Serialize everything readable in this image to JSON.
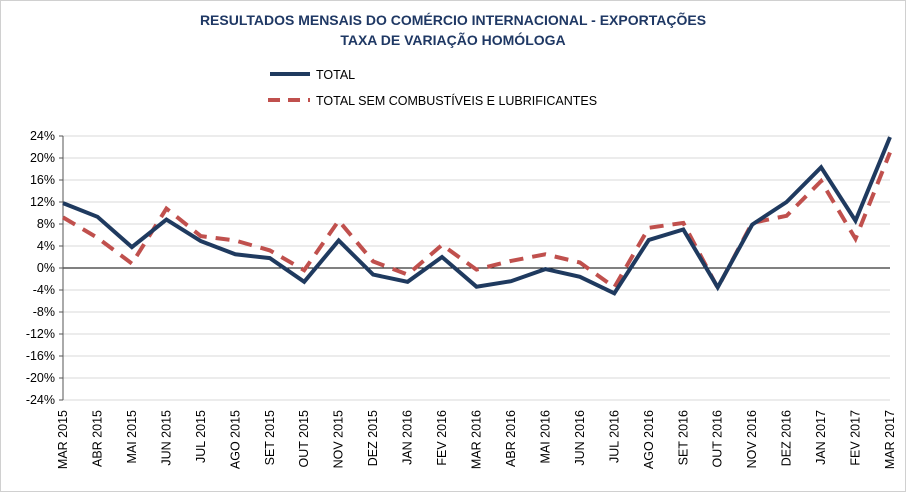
{
  "chart_data": {
    "type": "line",
    "title": "RESULTADOS MENSAIS DO COMÉRCIO INTERNACIONAL  - EXPORTAÇÕES",
    "subtitle": "TAXA DE VARIAÇÃO HOMÓLOGA",
    "xlabel": "",
    "ylabel": "",
    "ylim": [
      -24,
      24
    ],
    "yticks": [
      "24%",
      "20%",
      "16%",
      "12%",
      "8%",
      "4%",
      "0%",
      "-4%",
      "-8%",
      "-12%",
      "-16%",
      "-20%",
      "-24%"
    ],
    "ytick_values": [
      24,
      20,
      16,
      12,
      8,
      4,
      0,
      -4,
      -8,
      -12,
      -16,
      -20,
      -24
    ],
    "grid": true,
    "legend_position": "top",
    "categories": [
      "MAR 2015",
      "ABR 2015",
      "MAI 2015",
      "JUN 2015",
      "JUL 2015",
      "AGO 2015",
      "SET 2015",
      "OUT 2015",
      "NOV 2015",
      "DEZ 2015",
      "JAN 2016",
      "FEV 2016",
      "MAR 2016",
      "ABR 2016",
      "MAI 2016",
      "JUN 2016",
      "JUL 2016",
      "AGO 2016",
      "SET 2016",
      "OUT 2016",
      "NOV 2016",
      "DEZ 2016",
      "JAN 2017",
      "FEV 2017",
      "MAR 2017"
    ],
    "series": [
      {
        "name": "TOTAL",
        "color": "#1f3a5f",
        "style": "solid",
        "values": [
          11.8,
          9.3,
          3.8,
          8.8,
          4.9,
          2.5,
          1.8,
          -2.5,
          5.0,
          -1.2,
          -2.5,
          2.0,
          -3.4,
          -2.4,
          -0.2,
          -1.6,
          -4.6,
          5.1,
          7.0,
          -3.5,
          7.9,
          12.0,
          18.3,
          8.6,
          23.8
        ]
      },
      {
        "name": "TOTAL SEM COMBUSTÍVEIS E LUBRIFICANTES",
        "color": "#c0504d",
        "style": "dashed",
        "values": [
          9.2,
          5.5,
          0.8,
          10.8,
          5.8,
          5.0,
          3.2,
          -0.4,
          8.6,
          1.2,
          -1.2,
          4.2,
          -0.3,
          1.3,
          2.5,
          1.0,
          -3.5,
          7.3,
          8.2,
          -3.6,
          8.2,
          9.5,
          15.8,
          5.3,
          21.0
        ]
      }
    ]
  }
}
